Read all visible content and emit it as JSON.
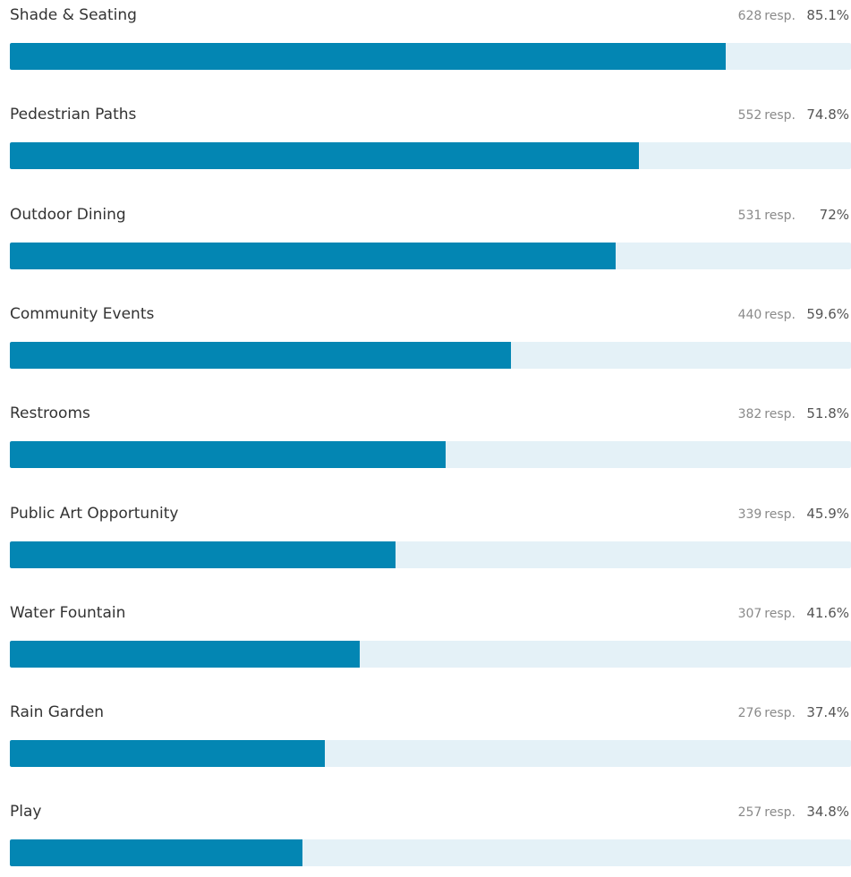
{
  "chart_data": {
    "type": "bar",
    "orientation": "horizontal",
    "unit_label": "resp.",
    "categories": [
      "Shade & Seating",
      "Pedestrian Paths",
      "Outdoor Dining",
      "Community Events",
      "Restrooms",
      "Public Art Opportunity",
      "Water Fountain",
      "Rain Garden",
      "Play"
    ],
    "responses": [
      628,
      552,
      531,
      440,
      382,
      339,
      307,
      276,
      257
    ],
    "percent_labels": [
      "85.1%",
      "74.8%",
      "72%",
      "59.6%",
      "51.8%",
      "45.9%",
      "41.6%",
      "37.4%",
      "34.8%"
    ],
    "values": [
      85.1,
      74.8,
      72,
      59.6,
      51.8,
      45.9,
      41.6,
      37.4,
      34.8
    ],
    "xlim": [
      0,
      100
    ],
    "grid": false,
    "legend": "none"
  },
  "colors": {
    "bar_fill": "#0386b3",
    "track": "#e4f1f7",
    "label_text": "#333333",
    "muted_text": "#8a8a8a"
  }
}
